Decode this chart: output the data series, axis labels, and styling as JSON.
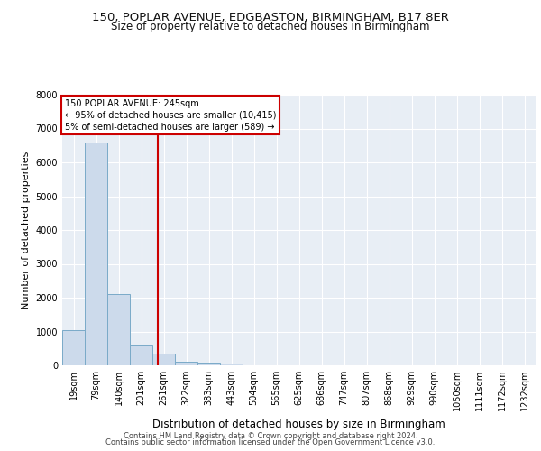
{
  "title_line1": "150, POPLAR AVENUE, EDGBASTON, BIRMINGHAM, B17 8ER",
  "title_line2": "Size of property relative to detached houses in Birmingham",
  "xlabel": "Distribution of detached houses by size in Birmingham",
  "ylabel": "Number of detached properties",
  "footer_line1": "Contains HM Land Registry data © Crown copyright and database right 2024.",
  "footer_line2": "Contains public sector information licensed under the Open Government Licence v3.0.",
  "annotation_line1": "150 POPLAR AVENUE: 245sqm",
  "annotation_line2": "← 95% of detached houses are smaller (10,415)",
  "annotation_line3": "5% of semi-detached houses are larger (589) →",
  "bar_color": "#ccdaeb",
  "bar_edge_color": "#7aaac8",
  "vline_color": "#cc0000",
  "annotation_box_color": "#cc0000",
  "background_color": "#e8eef5",
  "grid_color": "#ffffff",
  "categories": [
    "19sqm",
    "79sqm",
    "140sqm",
    "201sqm",
    "261sqm",
    "322sqm",
    "383sqm",
    "443sqm",
    "504sqm",
    "565sqm",
    "625sqm",
    "686sqm",
    "747sqm",
    "807sqm",
    "868sqm",
    "929sqm",
    "990sqm",
    "1050sqm",
    "1111sqm",
    "1172sqm",
    "1232sqm"
  ],
  "values": [
    1050,
    6600,
    2100,
    600,
    350,
    100,
    75,
    50,
    0,
    0,
    0,
    0,
    0,
    0,
    0,
    0,
    0,
    0,
    0,
    0,
    0
  ],
  "vline_x": 3.72,
  "ylim": [
    0,
    8000
  ],
  "yticks": [
    0,
    1000,
    2000,
    3000,
    4000,
    5000,
    6000,
    7000,
    8000
  ],
  "title1_fontsize": 9.5,
  "title2_fontsize": 8.5,
  "ylabel_fontsize": 8,
  "xlabel_fontsize": 8.5,
  "tick_fontsize": 7,
  "ann_fontsize": 7,
  "footer_fontsize": 6
}
